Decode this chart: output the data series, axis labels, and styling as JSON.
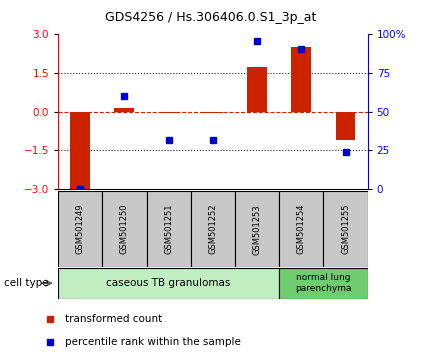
{
  "title": "GDS4256 / Hs.306406.0.S1_3p_at",
  "samples": [
    "GSM501249",
    "GSM501250",
    "GSM501251",
    "GSM501252",
    "GSM501253",
    "GSM501254",
    "GSM501255"
  ],
  "transformed_count": [
    -3.0,
    0.15,
    -0.05,
    -0.05,
    1.7,
    2.5,
    -1.1
  ],
  "percentile_rank": [
    0.5,
    60.0,
    32.0,
    32.0,
    95.0,
    90.0,
    24.0
  ],
  "ylim_left": [
    -3,
    3
  ],
  "ylim_right": [
    0,
    100
  ],
  "yticks_left": [
    -3,
    -1.5,
    0,
    1.5,
    3
  ],
  "yticks_right": [
    0,
    25,
    50,
    75,
    100
  ],
  "ytick_labels_right": [
    "0",
    "25",
    "50",
    "75",
    "100%"
  ],
  "cell_type_groups": [
    {
      "label": "caseous TB granulomas",
      "n_samples": 5,
      "color": "#c0eec0"
    },
    {
      "label": "normal lung\nparenchyma",
      "n_samples": 2,
      "color": "#70cc70"
    }
  ],
  "bar_color": "#cc2200",
  "dot_color": "#0000cc",
  "zero_line_color": "#cc2200",
  "dotted_line_color": "#222222",
  "bg_color": "#ffffff",
  "plot_bg_color": "#ffffff",
  "sample_box_color": "#c8c8c8",
  "legend_items": [
    {
      "color": "#cc2200",
      "label": "transformed count"
    },
    {
      "color": "#0000cc",
      "label": "percentile rank within the sample"
    }
  ],
  "cell_type_label": "cell type",
  "arrow_color": "#666666"
}
